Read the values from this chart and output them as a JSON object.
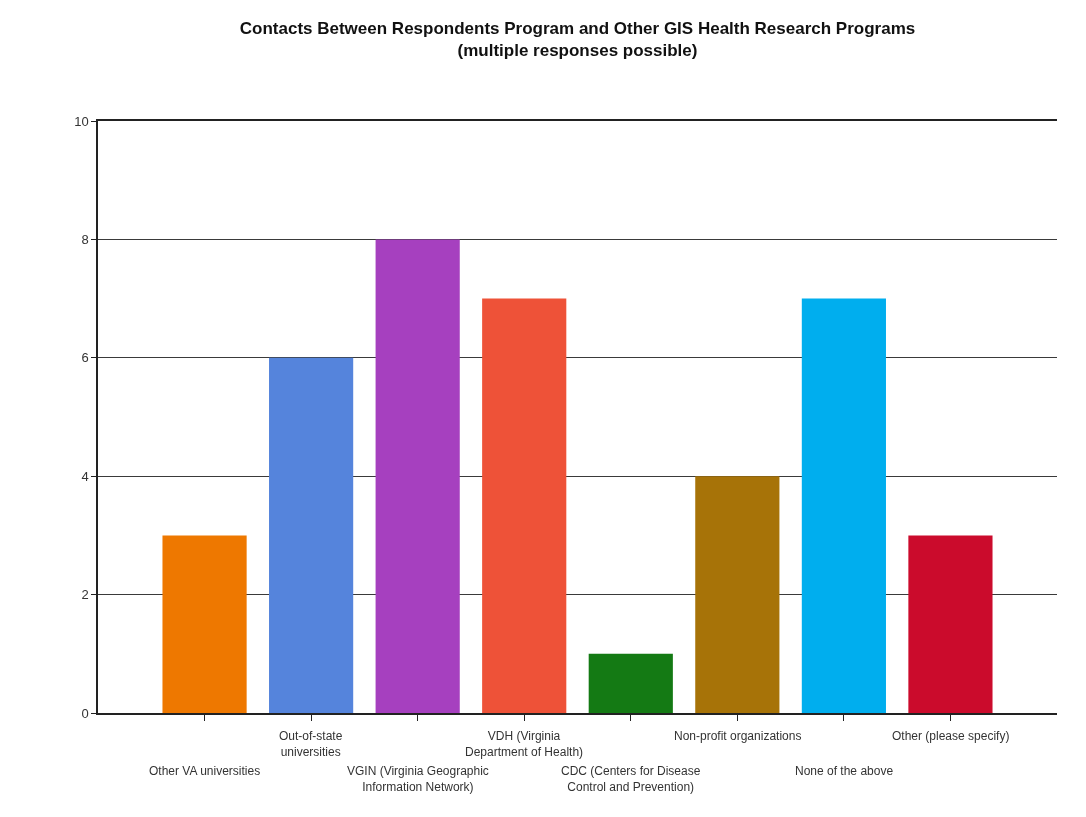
{
  "chart_data": {
    "type": "bar",
    "title": "Contacts Between Respondents Program and Other GIS Health Research Programs\n(multiple responses possible)",
    "categories": [
      "Other VA universities",
      "Out-of-state\nuniversities",
      "VGIN (Virginia Geographic\nInformation Network)",
      "VDH (Virginia\nDepartment of Health)",
      "CDC (Centers for Disease\nControl and Prevention)",
      "Non-profit organizations",
      "None of the above",
      "Other (please specify)"
    ],
    "values": [
      3,
      6,
      8,
      7,
      1,
      4,
      7,
      3
    ],
    "colors": [
      "#ee7800",
      "#5584dc",
      "#a640bf",
      "#ee5238",
      "#147a14",
      "#a77308",
      "#00aeee",
      "#cb0b2c"
    ],
    "ylim": [
      0,
      10
    ],
    "yticks": [
      0,
      2,
      4,
      6,
      8,
      10
    ],
    "grid": "y"
  }
}
